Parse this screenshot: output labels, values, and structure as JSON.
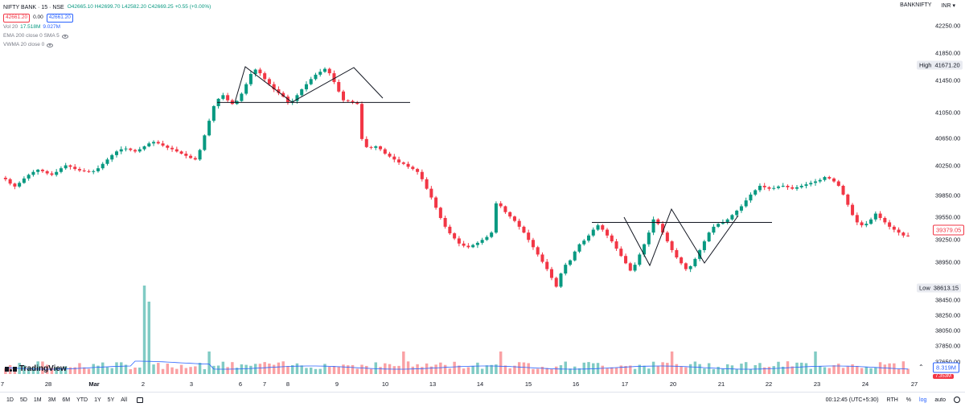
{
  "header": {
    "symbol": "NIFTY BANK · 15 · NSE",
    "ohlc": "O42665.10 H42699.70 L42582.20 C42669.25 +0.55 (+0.00%)",
    "bid": "42661.20",
    "spread": "0.00",
    "ask": "42661.20",
    "indicators": [
      {
        "label": "Vol 20",
        "values": [
          "17.518M",
          "9.027M"
        ]
      },
      {
        "label": "EMA 200 close 0 SMA 5",
        "values": []
      },
      {
        "label": "VWMA 20 close 0",
        "values": []
      }
    ]
  },
  "top_right": {
    "ticker": "BANKNIFTY",
    "currency": "INR"
  },
  "price_axis": {
    "ticks": [
      "42250.00",
      "41850.00",
      "41450.00",
      "41050.00",
      "40650.00",
      "40250.00",
      "39850.00",
      "39550.00",
      "39250.00",
      "38950.00",
      "38450.00",
      "38250.00",
      "38050.00",
      "37850.00",
      "37650.00"
    ],
    "high": {
      "label": "High",
      "value": "41671.20"
    },
    "low": {
      "label": "Low",
      "value": "38613.15"
    },
    "current": "39379.05",
    "volume_1": "8.319M",
    "volume_2": "7.353M"
  },
  "time_axis": {
    "labels": [
      "7",
      "28",
      "Mar",
      "2",
      "3",
      "6",
      "7",
      "8",
      "9",
      "10",
      "13",
      "14",
      "15",
      "16",
      "17",
      "20",
      "21",
      "22",
      "23",
      "24",
      "27"
    ]
  },
  "toolbar": {
    "timeframes": [
      "1D",
      "5D",
      "1M",
      "3M",
      "6M",
      "YTD",
      "1Y",
      "5Y",
      "All"
    ],
    "clock": "00:12:45 (UTC+5:30)",
    "session": "RTH",
    "percent": "%",
    "log": "log",
    "auto": "auto"
  },
  "branding": {
    "logo_text": "TradingView"
  },
  "colors": {
    "up": "#089981",
    "down": "#f23645",
    "vol_up": "#80cbc4",
    "vol_down": "#faa1a4",
    "line": "#2962ff",
    "pattern": "#131722"
  },
  "chart_data": {
    "type": "candlestick",
    "price_ylim": [
      37650,
      42350
    ],
    "pattern_lines": [
      {
        "name": "double-top-neckline",
        "price": 41200
      },
      {
        "name": "double-bottom-neckline",
        "price": 39560
      }
    ],
    "close_series": [
      40150,
      40090,
      40050,
      40100,
      40160,
      40210,
      40250,
      40280,
      40260,
      40230,
      40210,
      40250,
      40300,
      40340,
      40320,
      40290,
      40270,
      40260,
      40250,
      40260,
      40300,
      40360,
      40420,
      40480,
      40530,
      40560,
      40570,
      40550,
      40530,
      40560,
      40600,
      40640,
      40660,
      40640,
      40610,
      40580,
      40560,
      40530,
      40500,
      40470,
      40440,
      40420,
      40550,
      40750,
      40950,
      41150,
      41250,
      41300,
      41230,
      41180,
      41220,
      41320,
      41450,
      41590,
      41650,
      41600,
      41520,
      41450,
      41380,
      41330,
      41280,
      41200,
      41220,
      41300,
      41380,
      41450,
      41520,
      41580,
      41620,
      41660,
      41600,
      41480,
      41350,
      41230,
      41220,
      41200,
      41180,
      40700,
      40590,
      40580,
      40600,
      40560,
      40500,
      40460,
      40420,
      40380,
      40360,
      40320,
      40290,
      40250,
      40150,
      40020,
      39900,
      39760,
      39620,
      39500,
      39410,
      39340,
      39270,
      39240,
      39220,
      39250,
      39280,
      39320,
      39360,
      39420,
      39820,
      39780,
      39700,
      39640,
      39580,
      39500,
      39420,
      39320,
      39220,
      39120,
      39020,
      38920,
      38800,
      38680,
      38860,
      38980,
      39040,
      39160,
      39260,
      39310,
      39380,
      39460,
      39520,
      39460,
      39380,
      39300,
      39200,
      39100,
      39000,
      38900,
      38980,
      39120,
      39260,
      39420,
      39600,
      39540,
      39420,
      39300,
      39180,
      39080,
      39000,
      38920,
      38960,
      39060,
      39180,
      39300,
      39420,
      39500,
      39540,
      39560,
      39600,
      39660,
      39720,
      39780,
      39860,
      39940,
      40000,
      40060,
      40040,
      40020,
      40030,
      40050,
      40060,
      40040,
      40020,
      40040,
      40060,
      40080,
      40100,
      40120,
      40140,
      40180,
      40160,
      40120,
      40060,
      39940,
      39800,
      39660,
      39560,
      39520,
      39540,
      39600,
      39680,
      39620,
      39560,
      39500,
      39460,
      39420,
      39380,
      39379
    ]
  }
}
